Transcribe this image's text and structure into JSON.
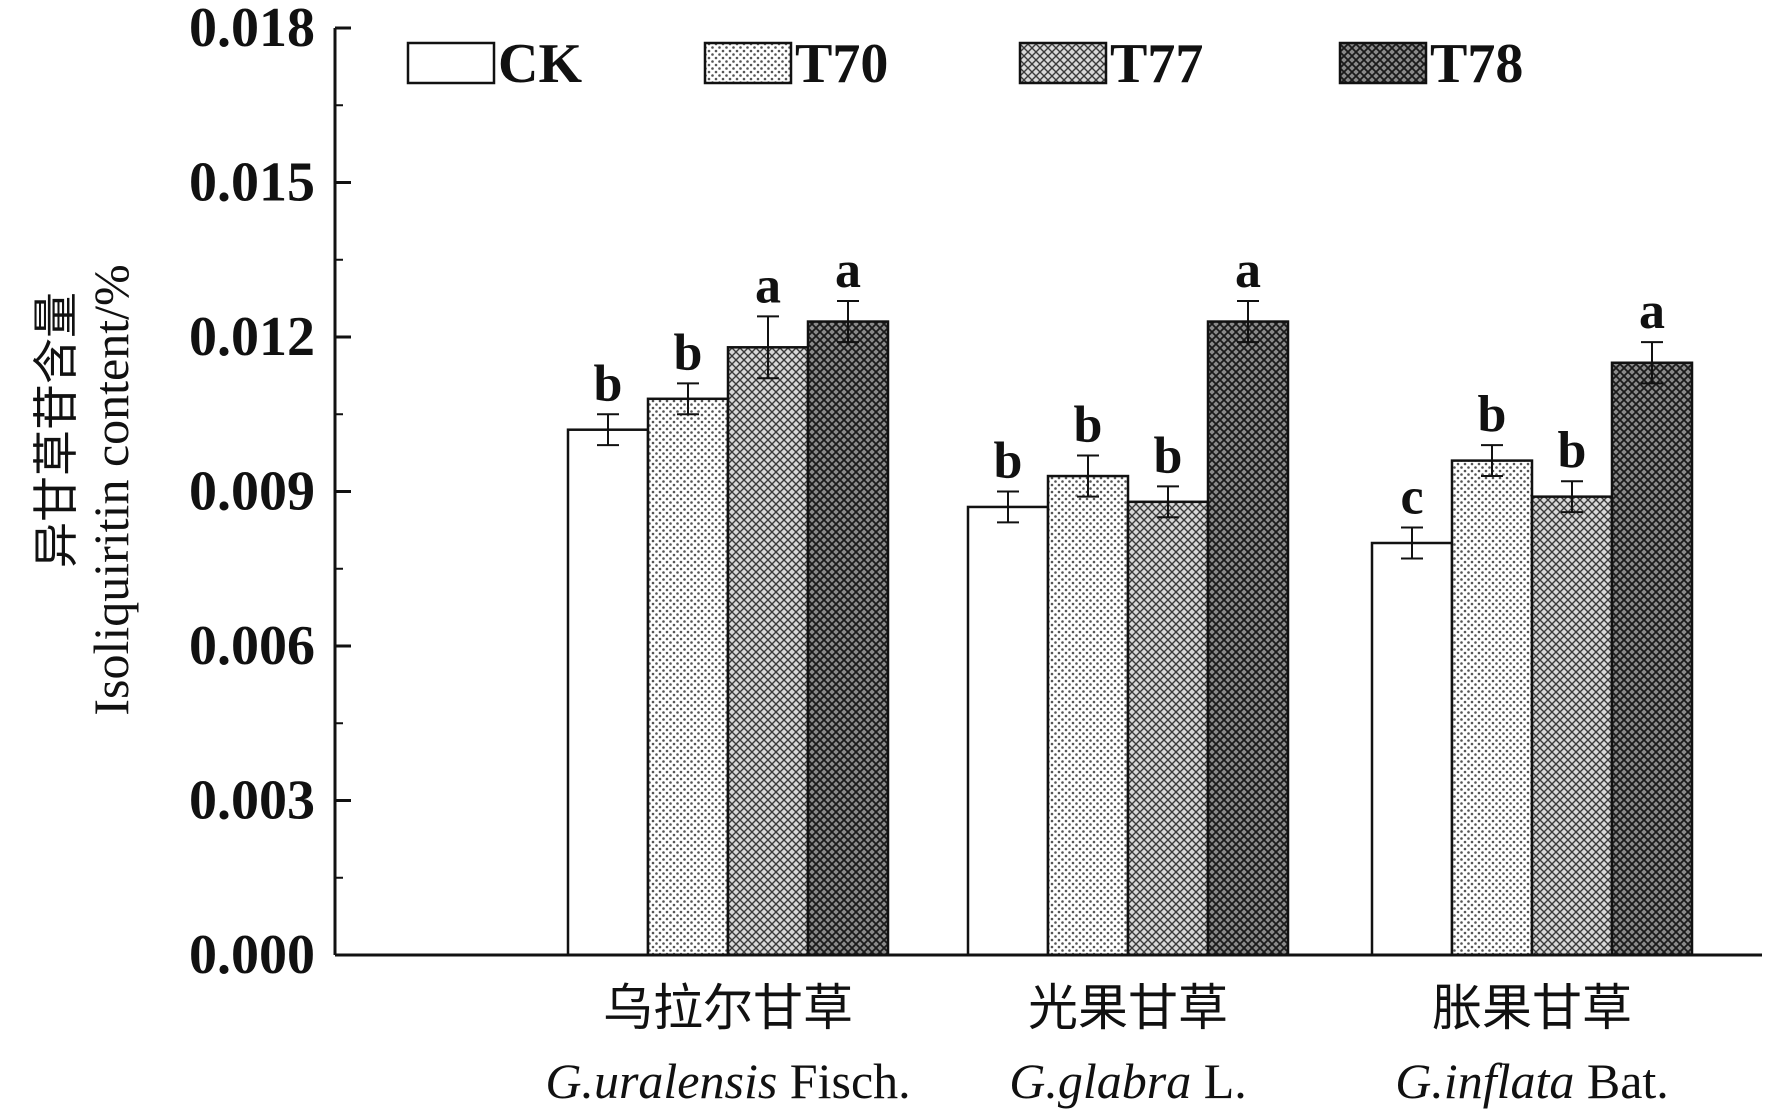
{
  "chart_data": {
    "type": "bar",
    "title": "",
    "ylabel_en": "Isoliquiritin content/%",
    "ylabel_cn": "异甘草苷含量",
    "ylim": [
      0,
      0.018
    ],
    "yticks": [
      "0.000",
      "0.003",
      "0.006",
      "0.009",
      "0.012",
      "0.015",
      "0.018"
    ],
    "categories": [
      {
        "cn": "乌拉尔甘草",
        "genus": "G.",
        "species": "uralensis",
        "author": "Fisch."
      },
      {
        "cn": "光果甘草",
        "genus": "G.",
        "species": "glabra",
        "author": "L."
      },
      {
        "cn": "胀果甘草",
        "genus": "G.",
        "species": "inflata",
        "author": "Bat."
      }
    ],
    "series": [
      {
        "name": "CK",
        "values": [
          0.0102,
          0.0087,
          0.008
        ],
        "errors": [
          0.0003,
          0.0003,
          0.0003
        ],
        "labels": [
          "b",
          "b",
          "c"
        ],
        "pattern": "none"
      },
      {
        "name": "T70",
        "values": [
          0.0108,
          0.0093,
          0.0096
        ],
        "errors": [
          0.0003,
          0.0004,
          0.0003
        ],
        "labels": [
          "b",
          "b",
          "b"
        ],
        "pattern": "dots"
      },
      {
        "name": "T77",
        "values": [
          0.0118,
          0.0088,
          0.0089
        ],
        "errors": [
          0.0006,
          0.0003,
          0.0003
        ],
        "labels": [
          "a",
          "b",
          "b"
        ],
        "pattern": "crosshatch-light"
      },
      {
        "name": "T78",
        "values": [
          0.0123,
          0.0123,
          0.0115
        ],
        "errors": [
          0.0004,
          0.0004,
          0.0004
        ],
        "labels": [
          "a",
          "a",
          "a"
        ],
        "pattern": "crosshatch-dark"
      }
    ],
    "legend_position": "top"
  }
}
